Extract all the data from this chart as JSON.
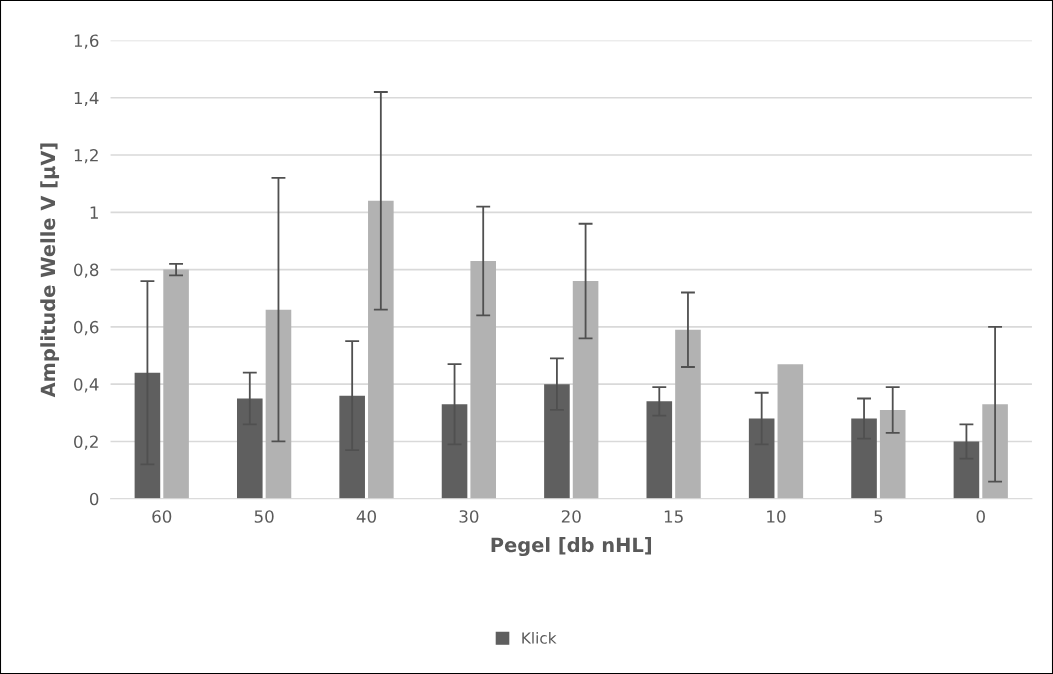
{
  "chart_data": {
    "type": "bar",
    "xlabel": "Pegel [db nHL]",
    "ylabel": "Amplitude Welle V [µV]",
    "categories": [
      "60",
      "50",
      "40",
      "30",
      "20",
      "15",
      "10",
      "5",
      "0"
    ],
    "series": [
      {
        "name": "Klick",
        "color": "#5f5f5f",
        "values": [
          0.44,
          0.35,
          0.36,
          0.33,
          0.4,
          0.34,
          0.28,
          0.28,
          0.2
        ],
        "errors": [
          0.32,
          0.09,
          0.19,
          0.14,
          0.09,
          0.05,
          0.09,
          0.07,
          0.06
        ]
      },
      {
        "color": "#b2b2b2",
        "values": [
          0.8,
          0.66,
          1.04,
          0.83,
          0.76,
          0.59,
          0.47,
          0.31,
          0.33
        ],
        "errors": [
          0.02,
          0.46,
          0.38,
          0.19,
          0.2,
          0.13,
          null,
          0.08,
          0.27
        ]
      }
    ],
    "ylim": [
      0,
      1.6
    ],
    "yticks": [
      0,
      {
        "value": 0.2,
        "label": "0,2"
      },
      {
        "value": 0.4,
        "label": "0,4"
      },
      {
        "value": 0.6,
        "label": "0,6"
      },
      {
        "value": 0.8,
        "label": "0,8"
      },
      1,
      {
        "value": 1.2,
        "label": "1,2"
      },
      {
        "value": 1.4,
        "label": "1,4"
      },
      {
        "value": 1.6,
        "label": "1,6"
      }
    ],
    "grid": "y",
    "legend": "bottom"
  }
}
